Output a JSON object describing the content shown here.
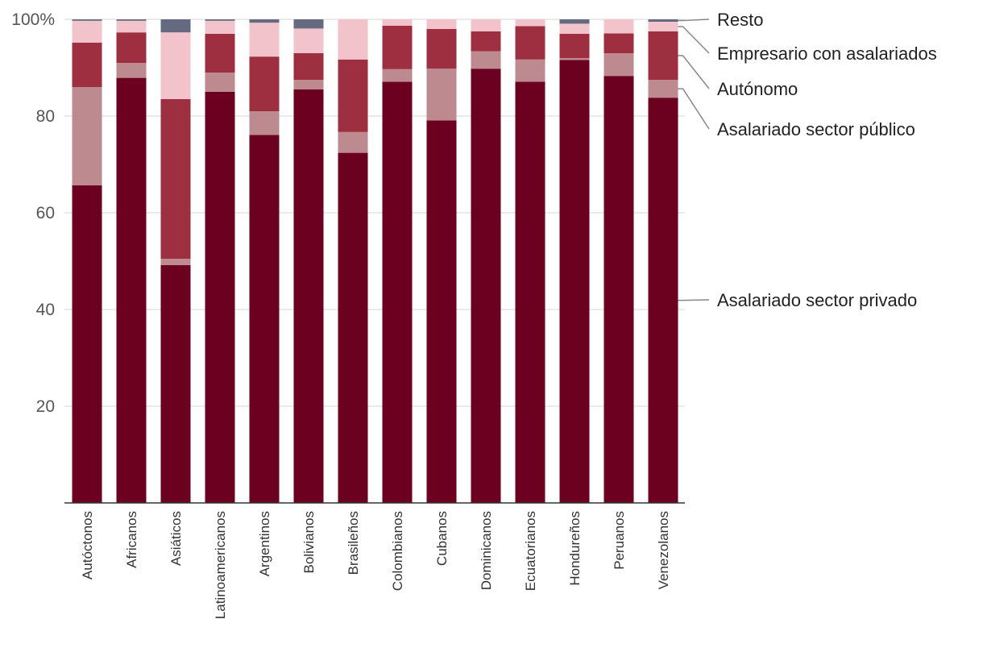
{
  "chart_data": {
    "type": "bar",
    "stacked": true,
    "title": "",
    "xlabel": "",
    "ylabel": "",
    "ylim": [
      0,
      100
    ],
    "yticks": [
      20,
      40,
      60,
      80,
      100
    ],
    "ytick_labels": [
      "20",
      "40",
      "60",
      "80",
      "100%"
    ],
    "categories": [
      "Autóctonos",
      "Africanos",
      "Asiáticos",
      "Latinoamericanos",
      "Argentinos",
      "Bolivianos",
      "Brasileños",
      "Colombianos",
      "Cubanos",
      "Dominicanos",
      "Ecuatorianos",
      "Hondureños",
      "Peruanos",
      "Venezolanos"
    ],
    "series": [
      {
        "name": "Asalariado sector privado",
        "color": "#6b0020",
        "values": [
          65.7,
          87.9,
          49.2,
          85.0,
          76.1,
          85.5,
          72.4,
          87.1,
          79.1,
          89.8,
          87.1,
          91.6,
          88.3,
          83.8
        ]
      },
      {
        "name": "Asalariado sector público",
        "color": "#bd8a8f",
        "values": [
          20.3,
          3.1,
          1.3,
          4.0,
          4.9,
          2.0,
          4.3,
          2.6,
          10.7,
          3.6,
          4.6,
          0.4,
          4.7,
          3.7
        ]
      },
      {
        "name": "Autónomo",
        "color": "#9e2f40",
        "values": [
          9.2,
          6.3,
          33.0,
          8.0,
          11.3,
          5.5,
          15.0,
          9.0,
          8.2,
          4.1,
          6.9,
          5.0,
          4.1,
          10.0
        ]
      },
      {
        "name": "Empresario con asalariados",
        "color": "#f2c3cb",
        "values": [
          4.5,
          2.4,
          13.8,
          2.7,
          7.0,
          5.1,
          8.3,
          1.3,
          2.0,
          2.5,
          1.4,
          2.1,
          2.9,
          2.0
        ]
      },
      {
        "name": "Resto",
        "color": "#666a80",
        "values": [
          0.3,
          0.3,
          2.7,
          0.3,
          0.7,
          1.9,
          0.0,
          0.0,
          0.0,
          0.0,
          0.0,
          0.9,
          0.0,
          0.5
        ]
      }
    ],
    "legend": {
      "placement": "right",
      "order": [
        "Resto",
        "Empresario con asalariados",
        "Autónomo",
        "Asalariado sector público",
        "Asalariado sector privado"
      ]
    },
    "grid": true
  }
}
